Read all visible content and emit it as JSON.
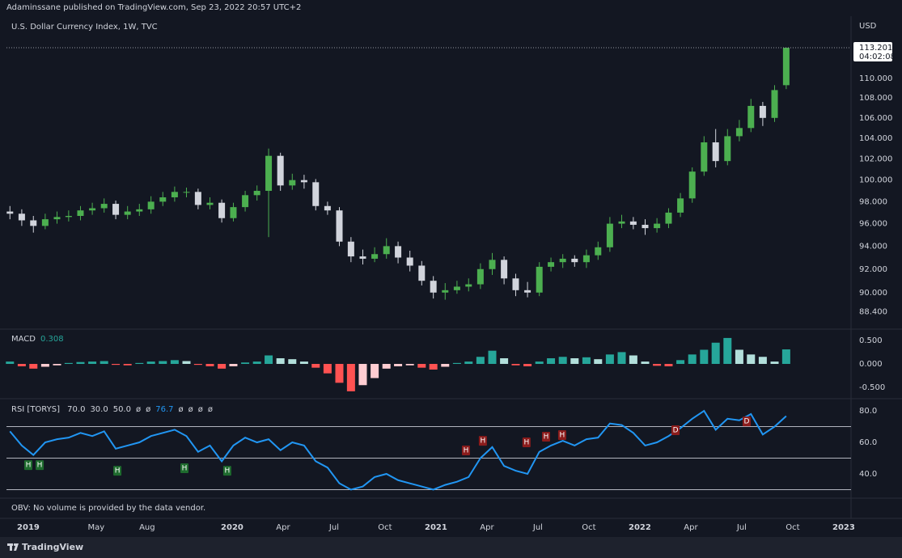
{
  "header": "Adaminssane published on TradingView.com, Sep 23, 2022 20:57 UTC+2",
  "obv_note": "OBV: No volume is provided by the data vendor.",
  "brand": "TradingView",
  "chart_data": [
    {
      "type": "candlestick",
      "title": "U.S. Dollar Currency Index, 1W, TVC",
      "y_axis_label": "USD",
      "log_scale": true,
      "grid": false,
      "up_color": "#4caf50",
      "down_color": "#d1d4dc",
      "countdown": "04:02:08",
      "xlim": [
        2018.893,
        2023.036
      ],
      "xticks": [
        {
          "value": 2019,
          "label": "2019"
        },
        {
          "value": 2019.333,
          "label": "May"
        },
        {
          "value": 2019.583,
          "label": "Aug"
        },
        {
          "value": 2020,
          "label": "2020"
        },
        {
          "value": 2020.25,
          "label": "Apr"
        },
        {
          "value": 2020.5,
          "label": "Jul"
        },
        {
          "value": 2020.75,
          "label": "Oct"
        },
        {
          "value": 2021,
          "label": "2021"
        },
        {
          "value": 2021.25,
          "label": "Apr"
        },
        {
          "value": 2021.5,
          "label": "Jul"
        },
        {
          "value": 2021.75,
          "label": "Oct"
        },
        {
          "value": 2022,
          "label": "2022"
        },
        {
          "value": 2022.25,
          "label": "Apr"
        },
        {
          "value": 2022.5,
          "label": "Jul"
        },
        {
          "value": 2022.75,
          "label": "Oct"
        },
        {
          "value": 2023,
          "label": "2023"
        }
      ],
      "ylim": [
        87.1,
        116.6
      ],
      "yticks": [
        {
          "value": 88.4,
          "label": "88.400"
        },
        {
          "value": 90,
          "label": "90.000"
        },
        {
          "value": 92,
          "label": "92.000"
        },
        {
          "value": 94,
          "label": "94.000"
        },
        {
          "value": 96,
          "label": "96.000"
        },
        {
          "value": 98,
          "label": "98.000"
        },
        {
          "value": 100,
          "label": "100.000"
        },
        {
          "value": 102,
          "label": "102.000"
        },
        {
          "value": 104,
          "label": "104.000"
        },
        {
          "value": 106,
          "label": "106.000"
        },
        {
          "value": 108,
          "label": "108.000"
        },
        {
          "value": 110,
          "label": "110.000"
        }
      ],
      "x": [
        2018.91,
        2018.968,
        2019.025,
        2019.083,
        2019.141,
        2019.198,
        2019.256,
        2019.314,
        2019.372,
        2019.429,
        2019.487,
        2019.545,
        2019.602,
        2019.66,
        2019.718,
        2019.776,
        2019.833,
        2019.891,
        2019.949,
        2020.006,
        2020.064,
        2020.122,
        2020.179,
        2020.237,
        2020.295,
        2020.353,
        2020.41,
        2020.468,
        2020.526,
        2020.583,
        2020.641,
        2020.699,
        2020.757,
        2020.814,
        2020.872,
        2020.93,
        2020.987,
        2021.045,
        2021.103,
        2021.16,
        2021.218,
        2021.276,
        2021.334,
        2021.391,
        2021.449,
        2021.507,
        2021.564,
        2021.622,
        2021.68,
        2021.738,
        2021.795,
        2021.853,
        2021.911,
        2021.968,
        2022.026,
        2022.084,
        2022.141,
        2022.199,
        2022.257,
        2022.315,
        2022.372,
        2022.43,
        2022.488,
        2022.545,
        2022.603,
        2022.661,
        2022.718
      ],
      "open": [
        97.1,
        96.9,
        96.3,
        95.8,
        96.4,
        96.6,
        96.7,
        97.2,
        97.4,
        97.8,
        96.8,
        97.1,
        97.3,
        98.0,
        98.4,
        98.9,
        98.9,
        97.7,
        97.9,
        96.5,
        97.5,
        98.6,
        99.0,
        102.3,
        99.5,
        100.0,
        99.8,
        97.6,
        97.2,
        94.4,
        93.1,
        92.9,
        93.3,
        94.0,
        93.0,
        92.3,
        91.0,
        90.0,
        90.2,
        90.5,
        90.7,
        92.0,
        92.8,
        91.2,
        90.2,
        90.0,
        92.2,
        92.6,
        92.9,
        92.6,
        93.2,
        93.9,
        96.0,
        96.2,
        95.9,
        95.6,
        96.0,
        97.0,
        98.3,
        100.8,
        103.6,
        101.8,
        104.2,
        105.0,
        107.2,
        106.0,
        109.3
      ],
      "high": [
        97.6,
        97.3,
        96.7,
        96.9,
        97.1,
        97.2,
        97.6,
        97.9,
        98.3,
        98.1,
        97.6,
        97.8,
        98.5,
        98.9,
        99.4,
        99.3,
        99.2,
        98.4,
        98.2,
        97.9,
        99.0,
        99.5,
        103.0,
        102.6,
        100.6,
        100.5,
        100.1,
        98.0,
        97.5,
        94.8,
        93.7,
        93.9,
        94.7,
        94.4,
        93.6,
        92.7,
        91.4,
        90.8,
        91.0,
        91.2,
        92.5,
        93.4,
        93.1,
        91.6,
        90.9,
        92.6,
        93.0,
        93.3,
        93.2,
        93.7,
        94.4,
        96.6,
        96.8,
        96.6,
        96.4,
        96.5,
        97.4,
        98.8,
        101.2,
        104.2,
        104.9,
        104.9,
        105.8,
        107.9,
        107.6,
        109.3,
        113.201
      ],
      "low": [
        96.4,
        95.8,
        95.2,
        95.5,
        96.0,
        96.2,
        96.3,
        96.8,
        97.0,
        96.4,
        96.4,
        96.7,
        96.9,
        97.6,
        98.0,
        98.4,
        97.3,
        97.3,
        96.1,
        96.2,
        97.1,
        98.1,
        94.8,
        99.0,
        99.1,
        99.2,
        97.2,
        96.8,
        94.0,
        92.6,
        92.4,
        92.6,
        92.9,
        92.5,
        91.8,
        90.6,
        89.5,
        89.4,
        89.9,
        90.1,
        90.3,
        91.5,
        90.7,
        89.7,
        89.6,
        89.7,
        91.8,
        92.1,
        92.2,
        92.1,
        92.8,
        93.5,
        95.6,
        95.5,
        95.0,
        95.2,
        95.6,
        96.6,
        97.9,
        100.4,
        101.2,
        101.4,
        103.7,
        104.6,
        105.2,
        105.6,
        108.9
      ],
      "close": [
        96.9,
        96.3,
        95.8,
        96.4,
        96.6,
        96.7,
        97.2,
        97.4,
        97.8,
        96.8,
        97.1,
        97.3,
        98.0,
        98.4,
        98.9,
        98.9,
        97.7,
        97.9,
        96.5,
        97.5,
        98.6,
        99.0,
        102.3,
        99.5,
        100.0,
        99.8,
        97.6,
        97.2,
        94.4,
        93.1,
        92.9,
        93.3,
        94.0,
        93.0,
        92.3,
        91.0,
        90.0,
        90.2,
        90.5,
        90.7,
        92.0,
        92.8,
        91.2,
        90.2,
        90.0,
        92.2,
        92.6,
        92.9,
        92.6,
        93.2,
        93.9,
        96.0,
        96.2,
        95.9,
        95.6,
        96.0,
        97.0,
        98.3,
        100.8,
        103.6,
        101.8,
        104.2,
        105.0,
        107.2,
        106.0,
        108.8,
        113.201
      ]
    },
    {
      "type": "bar",
      "title": "MACD",
      "value_color": "#26a69a",
      "colors": [
        "#26a69a",
        "#b2dfdb",
        "#ff5252",
        "#ffcdd2"
      ],
      "ylim": [
        -0.72,
        0.72
      ],
      "yticks": [
        {
          "value": 0.5,
          "label": "0.500"
        },
        {
          "value": 0,
          "label": "0.000"
        },
        {
          "value": -0.5,
          "label": "-0.500"
        }
      ],
      "values": [
        0.05,
        -0.05,
        -0.1,
        -0.06,
        -0.03,
        0.02,
        0.04,
        0.05,
        0.06,
        -0.02,
        -0.03,
        0.02,
        0.05,
        0.06,
        0.08,
        0.06,
        -0.02,
        -0.05,
        -0.1,
        -0.05,
        0.03,
        0.05,
        0.18,
        0.12,
        0.1,
        0.05,
        -0.08,
        -0.2,
        -0.4,
        -0.58,
        -0.45,
        -0.3,
        -0.1,
        -0.05,
        -0.03,
        -0.08,
        -0.12,
        -0.06,
        0.02,
        0.05,
        0.15,
        0.28,
        0.12,
        -0.03,
        -0.05,
        0.05,
        0.12,
        0.15,
        0.12,
        0.14,
        0.1,
        0.2,
        0.25,
        0.18,
        0.05,
        -0.04,
        -0.05,
        0.08,
        0.2,
        0.3,
        0.45,
        0.55,
        0.3,
        0.2,
        0.15,
        0.05,
        0.308
      ]
    },
    {
      "type": "line",
      "title": "RSI [TORYS]",
      "color": "#2196f3",
      "level_color": "#b2b5be",
      "levels": [
        {
          "value": 70,
          "label": "70.0"
        },
        {
          "value": 30,
          "label": "30.0"
        },
        {
          "value": 50,
          "label": "50.0"
        }
      ],
      "legend_na_before": [
        "ø",
        "ø"
      ],
      "legend_na_after": [
        "ø",
        "ø",
        "ø",
        "ø"
      ],
      "ylim": [
        25.1,
        86.7
      ],
      "yticks": [
        {
          "value": 80,
          "label": "80.0"
        },
        {
          "value": 60,
          "label": "60.0"
        },
        {
          "value": 40,
          "label": "40.0"
        }
      ],
      "values": [
        67,
        58,
        52,
        60,
        62,
        63,
        66,
        64,
        67,
        56,
        58,
        60,
        64,
        66,
        68,
        64,
        54,
        58,
        48,
        58,
        63,
        60,
        62,
        55,
        60,
        58,
        48,
        44,
        34,
        30,
        32,
        38,
        40,
        36,
        34,
        32,
        30,
        33,
        35,
        38,
        50,
        57,
        45,
        42,
        40,
        54,
        58,
        61,
        58,
        62,
        63,
        72,
        71,
        66,
        58,
        60,
        64,
        69,
        75,
        80,
        68,
        75,
        74,
        78,
        65,
        70,
        76.7
      ],
      "markers": [
        {
          "x": 2019.0,
          "y": 45.6,
          "label": "H",
          "color": "#1e6b2e"
        },
        {
          "x": 2019.056,
          "y": 45.6,
          "label": "H",
          "color": "#1e6b2e"
        },
        {
          "x": 2019.437,
          "y": 42,
          "label": "H",
          "color": "#1e6b2e"
        },
        {
          "x": 2019.766,
          "y": 43.6,
          "label": "H",
          "color": "#1e6b2e"
        },
        {
          "x": 2019.976,
          "y": 42,
          "label": "H",
          "color": "#1e6b2e"
        },
        {
          "x": 2021.147,
          "y": 54.9,
          "label": "H",
          "color": "#8b1c1c"
        },
        {
          "x": 2021.23,
          "y": 61,
          "label": "H",
          "color": "#8b1c1c"
        },
        {
          "x": 2021.444,
          "y": 60,
          "label": "H",
          "color": "#8b1c1c"
        },
        {
          "x": 2021.54,
          "y": 63.6,
          "label": "H",
          "color": "#8b1c1c"
        },
        {
          "x": 2021.619,
          "y": 64.6,
          "label": "H",
          "color": "#8b1c1c"
        },
        {
          "x": 2022.175,
          "y": 67.7,
          "label": "D",
          "color": "#8b1c1c"
        },
        {
          "x": 2022.524,
          "y": 73.3,
          "label": "D",
          "color": "#8b1c1c"
        }
      ]
    }
  ]
}
